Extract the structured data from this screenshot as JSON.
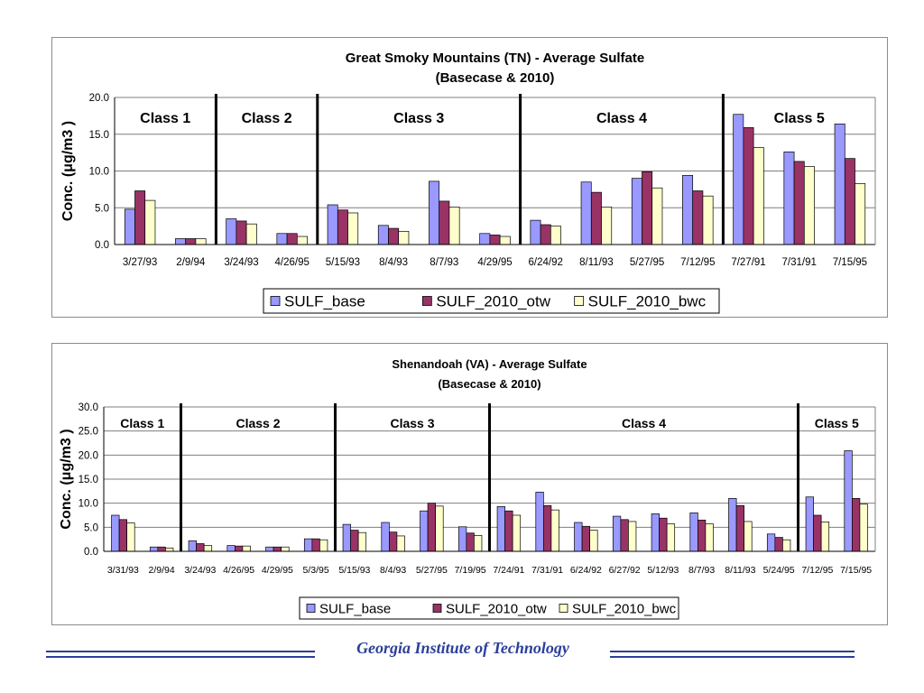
{
  "colors": {
    "SULF_base": "#9999ff",
    "SULF_2010_otw": "#993366",
    "SULF_2010_bwc": "#ffffcc",
    "footer": "#2b3f9a",
    "grid": "#7f7f7f"
  },
  "chart_data": [
    {
      "type": "bar",
      "title": "Great Smoky Mountains (TN) - Average Sulfate",
      "subtitle": "(Basecase & 2010)",
      "ylabel": "Conc.  (μg/m3 )",
      "ylim": [
        0,
        20
      ],
      "yticks": [
        "0.0",
        "5.0",
        "10.0",
        "15.0",
        "20.0"
      ],
      "categories": [
        "3/27/93",
        "2/9/94",
        "3/24/93",
        "4/26/95",
        "5/15/93",
        "8/4/93",
        "8/7/93",
        "4/29/95",
        "6/24/92",
        "8/11/93",
        "5/27/95",
        "7/12/95",
        "7/27/91",
        "7/31/91",
        "7/15/95"
      ],
      "series": [
        {
          "name": "SULF_base",
          "values": [
            4.8,
            0.8,
            3.5,
            1.5,
            5.4,
            2.6,
            8.6,
            1.5,
            3.3,
            8.5,
            9.0,
            9.4,
            17.7,
            12.6,
            16.4
          ]
        },
        {
          "name": "SULF_2010_otw",
          "values": [
            7.3,
            0.8,
            3.2,
            1.5,
            4.7,
            2.2,
            5.9,
            1.3,
            2.7,
            7.1,
            9.9,
            7.3,
            15.9,
            11.3,
            11.7
          ]
        },
        {
          "name": "SULF_2010_bwc",
          "values": [
            6.0,
            0.8,
            2.8,
            1.1,
            4.3,
            1.8,
            5.1,
            1.1,
            2.5,
            5.1,
            7.7,
            6.6,
            13.2,
            10.6,
            8.3
          ]
        }
      ],
      "classes": [
        {
          "label": "Class 1",
          "start": 0,
          "end": 2
        },
        {
          "label": "Class 2",
          "start": 2,
          "end": 4
        },
        {
          "label": "Class 3",
          "start": 4,
          "end": 8
        },
        {
          "label": "Class 4",
          "start": 8,
          "end": 12
        },
        {
          "label": "Class 5",
          "start": 12,
          "end": 15
        }
      ],
      "legend": [
        "SULF_base",
        "SULF_2010_otw",
        "SULF_2010_bwc"
      ],
      "legend_position": "bottom",
      "grid": true
    },
    {
      "type": "bar",
      "title": "Shenandoah (VA) - Average Sulfate",
      "subtitle": "(Basecase & 2010)",
      "ylabel": "Conc.  (μg/m3 )",
      "ylim": [
        0,
        30
      ],
      "yticks": [
        "0.0",
        "5.0",
        "10.0",
        "15.0",
        "20.0",
        "25.0",
        "30.0"
      ],
      "categories": [
        "3/31/93",
        "2/9/94",
        "3/24/93",
        "4/26/95",
        "4/29/95",
        "5/3/95",
        "5/15/93",
        "8/4/93",
        "5/27/95",
        "7/19/95",
        "7/24/91",
        "7/31/91",
        "6/24/92",
        "6/27/92",
        "5/12/93",
        "8/7/93",
        "8/11/93",
        "5/24/95",
        "7/12/95",
        "7/15/95"
      ],
      "series": [
        {
          "name": "SULF_base",
          "values": [
            7.5,
            0.9,
            2.2,
            1.2,
            0.9,
            2.6,
            5.6,
            6.0,
            8.4,
            5.1,
            9.3,
            12.3,
            6.0,
            7.3,
            7.8,
            8.0,
            11.0,
            3.6,
            11.3,
            20.9
          ]
        },
        {
          "name": "SULF_2010_otw",
          "values": [
            6.6,
            0.9,
            1.6,
            1.1,
            0.9,
            2.6,
            4.4,
            4.0,
            10.0,
            3.8,
            8.4,
            9.5,
            5.2,
            6.6,
            6.9,
            6.5,
            9.5,
            2.9,
            7.5,
            11.0
          ]
        },
        {
          "name": "SULF_2010_bwc",
          "values": [
            5.9,
            0.7,
            1.2,
            1.1,
            0.9,
            2.4,
            3.9,
            3.2,
            9.4,
            3.3,
            7.5,
            8.6,
            4.4,
            6.2,
            5.7,
            5.7,
            6.2,
            2.4,
            6.1,
            9.8
          ]
        }
      ],
      "classes": [
        {
          "label": "Class 1",
          "start": 0,
          "end": 2
        },
        {
          "label": "Class 2",
          "start": 2,
          "end": 6
        },
        {
          "label": "Class 3",
          "start": 6,
          "end": 10
        },
        {
          "label": "Class 4",
          "start": 10,
          "end": 18
        },
        {
          "label": "Class 5",
          "start": 18,
          "end": 20
        }
      ],
      "legend": [
        "SULF_base",
        "SULF_2010_otw",
        "SULF_2010_bwc"
      ],
      "legend_position": "bottom",
      "grid": true
    }
  ],
  "footer": {
    "text": "Georgia Institute of Technology"
  }
}
